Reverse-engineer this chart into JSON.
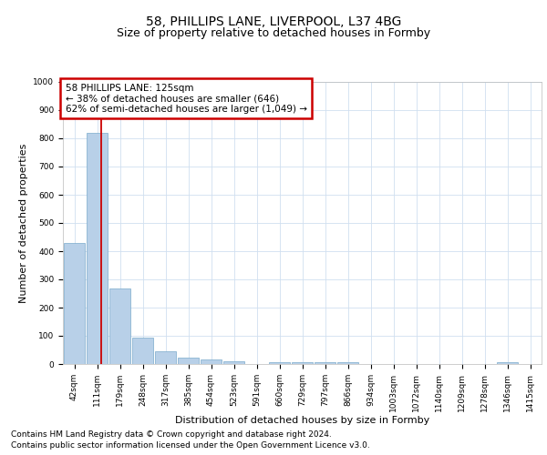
{
  "title1": "58, PHILLIPS LANE, LIVERPOOL, L37 4BG",
  "title2": "Size of property relative to detached houses in Formby",
  "xlabel": "Distribution of detached houses by size in Formby",
  "ylabel": "Number of detached properties",
  "categories": [
    "42sqm",
    "111sqm",
    "179sqm",
    "248sqm",
    "317sqm",
    "385sqm",
    "454sqm",
    "523sqm",
    "591sqm",
    "660sqm",
    "729sqm",
    "797sqm",
    "866sqm",
    "934sqm",
    "1003sqm",
    "1072sqm",
    "1140sqm",
    "1209sqm",
    "1278sqm",
    "1346sqm",
    "1415sqm"
  ],
  "values": [
    430,
    820,
    268,
    95,
    45,
    22,
    16,
    10,
    0,
    8,
    5,
    5,
    8,
    0,
    0,
    0,
    0,
    0,
    0,
    8,
    0
  ],
  "bar_color": "#b8d0e8",
  "bar_edge_color": "#7aaacb",
  "grid_color": "#d0dff0",
  "background_color": "#ffffff",
  "annotation_line1": "58 PHILLIPS LANE: 125sqm",
  "annotation_line2": "← 38% of detached houses are smaller (646)",
  "annotation_line3": "62% of semi-detached houses are larger (1,049) →",
  "annotation_box_color": "#cc0000",
  "property_line_x": 1.18,
  "property_line_color": "#cc0000",
  "ylim": [
    0,
    1000
  ],
  "yticks": [
    0,
    100,
    200,
    300,
    400,
    500,
    600,
    700,
    800,
    900,
    1000
  ],
  "footer_line1": "Contains HM Land Registry data © Crown copyright and database right 2024.",
  "footer_line2": "Contains public sector information licensed under the Open Government Licence v3.0.",
  "title1_fontsize": 10,
  "title2_fontsize": 9,
  "tick_fontsize": 6.5,
  "ylabel_fontsize": 8,
  "xlabel_fontsize": 8,
  "footer_fontsize": 6.5,
  "ann_fontsize": 7.5
}
